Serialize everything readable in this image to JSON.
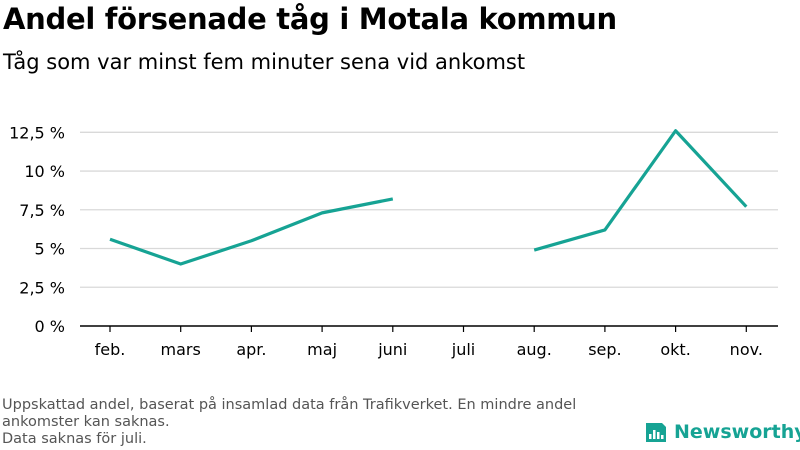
{
  "title": "Andel försenade tåg i Motala kommun",
  "subtitle": "Tåg som var minst fem minuter sena vid ankomst",
  "footnote": {
    "line1": "Uppskattad andel, baserat på insamlad data från Trafikverket. En mindre andel",
    "line2": "ankomster kan saknas.",
    "line3": "Data saknas för juli."
  },
  "brand": {
    "name": "Newsworthy",
    "icon": "newsworthy-logo-icon",
    "color": "#16a394"
  },
  "chart_data": {
    "type": "line",
    "title": "Andel försenade tåg i Motala kommun",
    "subtitle": "Tåg som var minst fem minuter sena vid ankomst",
    "categories": [
      "feb.",
      "mars",
      "apr.",
      "maj",
      "juni",
      "juli",
      "aug.",
      "sep.",
      "okt.",
      "nov."
    ],
    "series": [
      {
        "values": [
          5.6,
          4.0,
          5.5,
          7.3,
          8.2,
          null,
          4.9,
          6.2,
          12.6,
          7.7
        ],
        "color": "#16a394"
      }
    ],
    "yticks": [
      0,
      2.5,
      5,
      7.5,
      10,
      12.5
    ],
    "ytick_labels": [
      "0 %",
      "2,5 %",
      "5 %",
      "7,5 %",
      "10 %",
      "12,5 %"
    ],
    "ylim": [
      0,
      13.1
    ],
    "grid": true
  }
}
